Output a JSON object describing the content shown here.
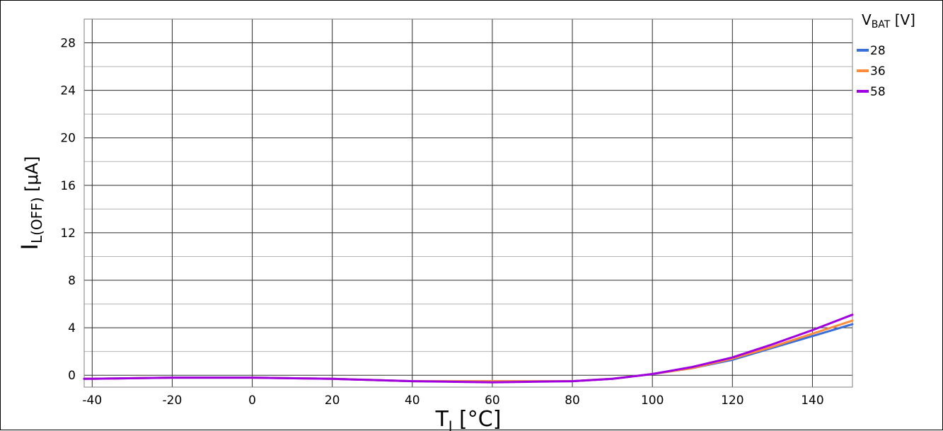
{
  "chart_data": {
    "type": "line",
    "title": "",
    "xlabel": {
      "main": "T",
      "sub": "J",
      "unit": " [°C]"
    },
    "ylabel": {
      "main": "I",
      "sub": "L(OFF)",
      "unit": " [μA]"
    },
    "xlim": [
      -42,
      150
    ],
    "ylim": [
      -1,
      30
    ],
    "xticks": [
      -40,
      -20,
      0,
      20,
      40,
      60,
      80,
      100,
      120,
      140
    ],
    "yticks": [
      0,
      4,
      8,
      12,
      16,
      20,
      24,
      28
    ],
    "grid": true,
    "legend": {
      "title_main": "V",
      "title_sub": "BAT",
      "title_unit": " [V]",
      "placement": "right"
    },
    "series": [
      {
        "name": "28",
        "color": "#3b6fd8",
        "x": [
          -42,
          -20,
          0,
          20,
          40,
          60,
          80,
          90,
          100,
          110,
          120,
          130,
          140,
          150
        ],
        "y": [
          -0.3,
          -0.2,
          -0.2,
          -0.3,
          -0.5,
          -0.5,
          -0.5,
          -0.3,
          0.1,
          0.6,
          1.3,
          2.3,
          3.3,
          4.3
        ]
      },
      {
        "name": "36",
        "color": "#ff8c3a",
        "x": [
          -42,
          -20,
          0,
          20,
          40,
          60,
          80,
          90,
          100,
          110,
          120,
          130,
          140,
          150
        ],
        "y": [
          -0.3,
          -0.2,
          -0.2,
          -0.3,
          -0.5,
          -0.5,
          -0.5,
          -0.3,
          0.1,
          0.6,
          1.4,
          2.4,
          3.5,
          4.6
        ]
      },
      {
        "name": "58",
        "color": "#a000e0",
        "x": [
          -42,
          -20,
          0,
          20,
          40,
          60,
          80,
          90,
          100,
          110,
          120,
          130,
          140,
          150
        ],
        "y": [
          -0.3,
          -0.2,
          -0.2,
          -0.3,
          -0.5,
          -0.6,
          -0.5,
          -0.3,
          0.1,
          0.7,
          1.5,
          2.6,
          3.8,
          5.1
        ]
      }
    ]
  }
}
